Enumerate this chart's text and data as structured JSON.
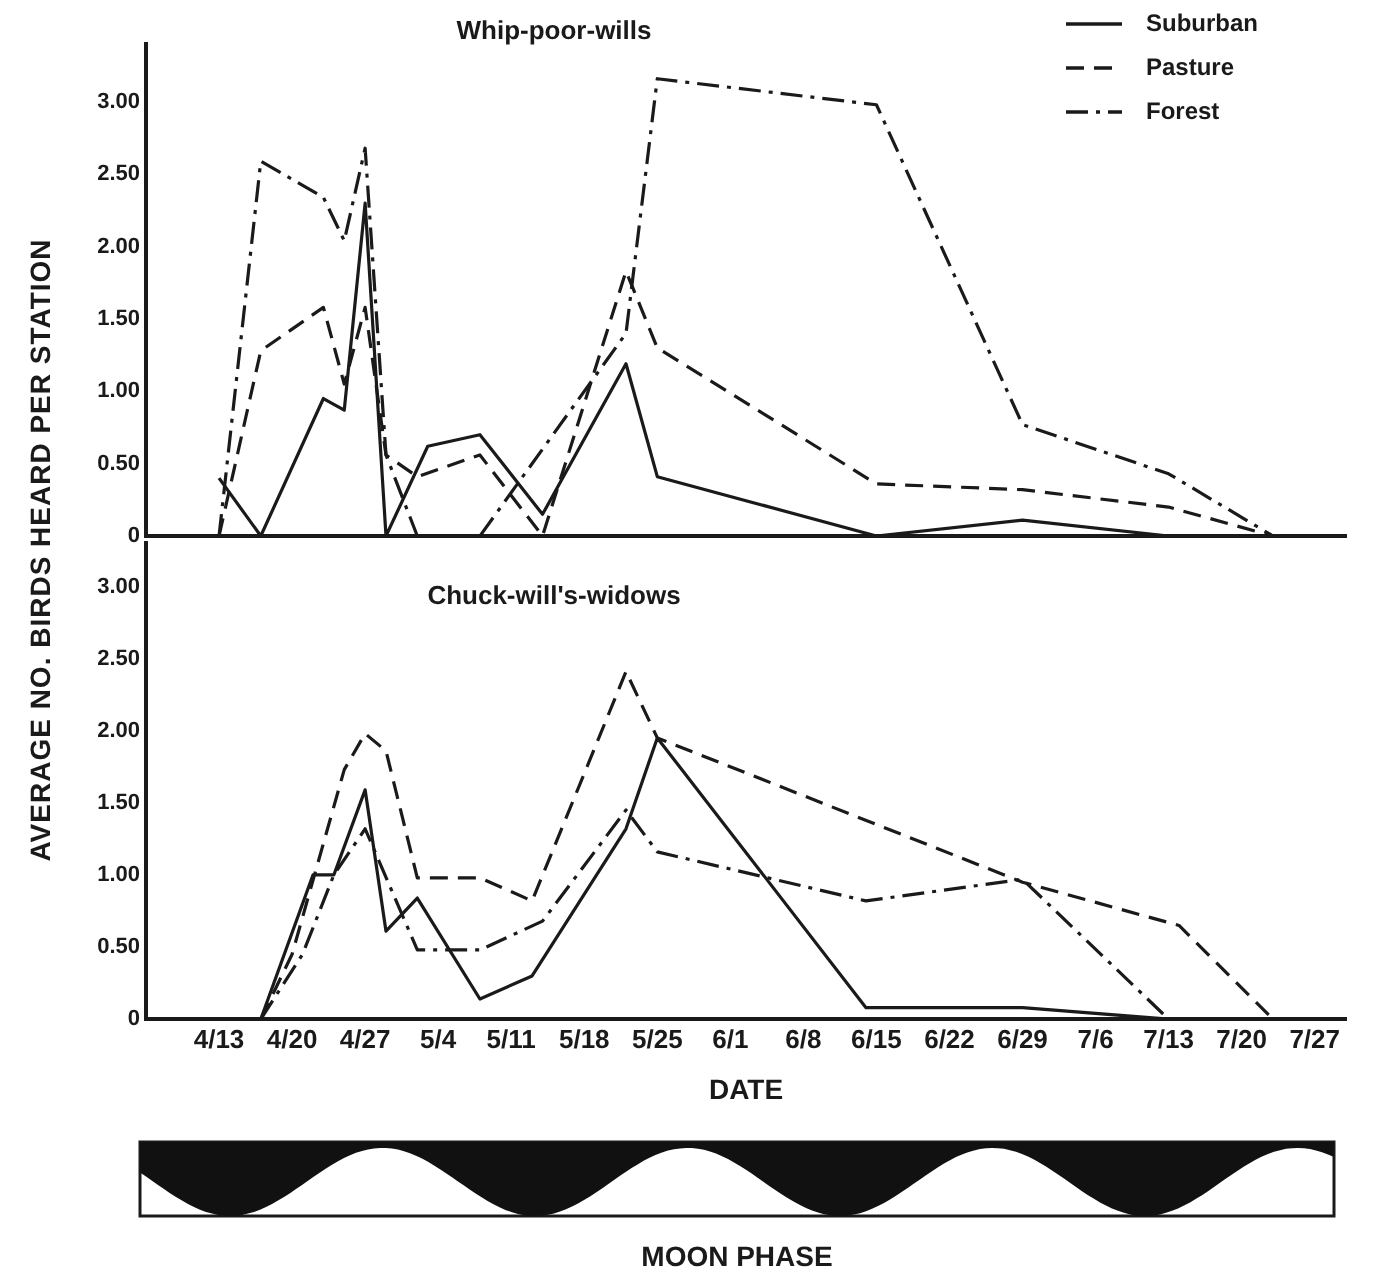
{
  "chart_data": [
    {
      "type": "line",
      "title": "Whip-poor-wills",
      "ylabel": "AVERAGE NO. BIRDS HEARD PER STATION",
      "xlim": [
        "--04-06",
        "--07-30"
      ],
      "ylim": [
        0,
        3.4
      ],
      "yticks": [
        {
          "value": 0,
          "label": "0"
        },
        {
          "value": 0.5,
          "label": "0.50"
        },
        {
          "value": 1,
          "label": "1.00"
        },
        {
          "value": 1.5,
          "label": "1.50"
        },
        {
          "value": 2,
          "label": "2.00"
        },
        {
          "value": 2.5,
          "label": "2.50"
        },
        {
          "value": 3,
          "label": "3.00"
        }
      ],
      "tick_labels": "y",
      "grid": false,
      "legend": "top right",
      "marker": "none",
      "series": [
        {
          "name": "Suburban",
          "color": "#1a1a1a",
          "line_style": "solid",
          "x": [
            "--04-13",
            "--04-17",
            "--04-23",
            "--04-25",
            "--04-27",
            "--04-29",
            "--05-03",
            "--05-08",
            "--05-14",
            "--05-22",
            "--05-25",
            "--06-15",
            "--06-29",
            "--07-13",
            "--07-23"
          ],
          "values": [
            0.4,
            0,
            0.95,
            0.87,
            2.3,
            0,
            0.62,
            0.7,
            0.15,
            1.19,
            0.41,
            0,
            0.11,
            0,
            0
          ]
        },
        {
          "name": "Pasture",
          "color": "#1a1a1a",
          "line_style": "dashed",
          "x": [
            "--04-13",
            "--04-17",
            "--04-23",
            "--04-25",
            "--04-27",
            "--04-29",
            "--05-02",
            "--05-08",
            "--05-14",
            "--05-22",
            "--05-25",
            "--06-15",
            "--06-29",
            "--07-13",
            "--07-23"
          ],
          "values": [
            0,
            1.28,
            1.58,
            1.05,
            1.58,
            0.56,
            0.41,
            0.56,
            0,
            1.83,
            1.3,
            0.36,
            0.32,
            0.2,
            0
          ]
        },
        {
          "name": "Forest",
          "color": "#1a1a1a",
          "line_style": "dashdot",
          "x": [
            "--04-13",
            "--04-17",
            "--04-23",
            "--04-25",
            "--04-27",
            "--04-29",
            "--05-02",
            "--05-08",
            "--05-22",
            "--05-25",
            "--06-15",
            "--06-29",
            "--07-13",
            "--07-23"
          ],
          "values": [
            0,
            2.59,
            2.34,
            2.04,
            2.68,
            0.56,
            0,
            0,
            1.4,
            3.16,
            2.98,
            0.77,
            0.43,
            0
          ]
        }
      ]
    },
    {
      "type": "line",
      "title": "Chuck-will's-widows",
      "xlabel": "DATE",
      "annotations": [
        "MOON PHASE"
      ],
      "xlim": [
        "--04-06",
        "--07-30"
      ],
      "xticks": [
        {
          "value": "--04-13",
          "label": "4/13"
        },
        {
          "value": "--04-20",
          "label": "4/20"
        },
        {
          "value": "--04-27",
          "label": "4/27"
        },
        {
          "value": "--05-04",
          "label": "5/4"
        },
        {
          "value": "--05-11",
          "label": "5/11"
        },
        {
          "value": "--05-18",
          "label": "5/18"
        },
        {
          "value": "--05-25",
          "label": "5/25"
        },
        {
          "value": "--06-01",
          "label": "6/1"
        },
        {
          "value": "--06-08",
          "label": "6/8"
        },
        {
          "value": "--06-15",
          "label": "6/15"
        },
        {
          "value": "--06-22",
          "label": "6/22"
        },
        {
          "value": "--06-29",
          "label": "6/29"
        },
        {
          "value": "--07-06",
          "label": "7/6"
        },
        {
          "value": "--07-13",
          "label": "7/13"
        },
        {
          "value": "--07-20",
          "label": "7/20"
        },
        {
          "value": "--07-27",
          "label": "7/27"
        }
      ],
      "ylim": [
        0,
        3.3
      ],
      "yticks": [
        {
          "value": 0,
          "label": "0"
        },
        {
          "value": 0.5,
          "label": "0.50"
        },
        {
          "value": 1,
          "label": "1.00"
        },
        {
          "value": 1.5,
          "label": "1.50"
        },
        {
          "value": 2,
          "label": "2.00"
        },
        {
          "value": 2.5,
          "label": "2.50"
        },
        {
          "value": 3,
          "label": "3.00"
        }
      ],
      "grid": false,
      "marker": "none",
      "series": [
        {
          "color": "#1a1a1a",
          "line_style": "solid",
          "x": [
            "--04-12",
            "--04-17",
            "--04-22",
            "--04-24",
            "--04-27",
            "--04-29",
            "--05-02",
            "--05-08",
            "--05-13",
            "--05-22",
            "--05-25",
            "--06-14",
            "--06-29",
            "--07-13",
            "--07-23"
          ],
          "values": [
            0,
            0,
            1.0,
            1.0,
            1.59,
            0.61,
            0.84,
            0.14,
            0.3,
            1.32,
            1.95,
            0.08,
            0.08,
            0,
            0
          ]
        },
        {
          "color": "#1a1a1a",
          "line_style": "dashed",
          "x": [
            "--04-17",
            "--04-20",
            "--04-25",
            "--04-27",
            "--04-29",
            "--05-02",
            "--05-08",
            "--05-13",
            "--05-22",
            "--05-25",
            "--06-29",
            "--07-14",
            "--07-23"
          ],
          "values": [
            0,
            0.45,
            1.73,
            1.98,
            1.86,
            0.98,
            0.98,
            0.82,
            2.41,
            1.95,
            0.95,
            0.65,
            0
          ]
        },
        {
          "color": "#1a1a1a",
          "line_style": "dashdot",
          "x": [
            "--04-17",
            "--04-21",
            "--04-24",
            "--04-27",
            "--05-02",
            "--05-08",
            "--05-14",
            "--05-22",
            "--05-25",
            "--06-14",
            "--06-29",
            "--07-13"
          ],
          "values": [
            0,
            0.45,
            1.0,
            1.32,
            0.48,
            0.48,
            0.68,
            1.45,
            1.16,
            0.82,
            0.97,
            0
          ]
        }
      ]
    }
  ]
}
